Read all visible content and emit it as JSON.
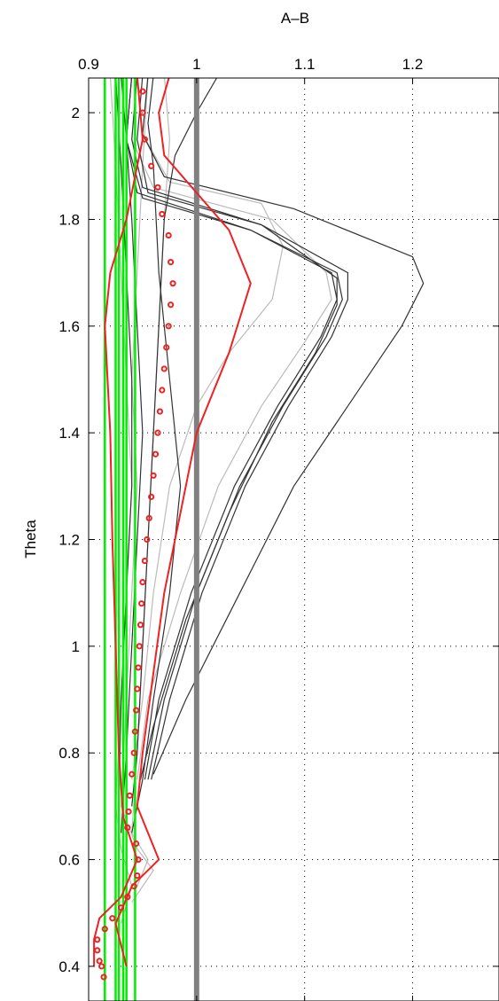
{
  "chart_data": {
    "type": "line",
    "title": "",
    "xlabel": "A–B",
    "ylabel": "Theta",
    "xlim": [
      0.9,
      1.28
    ],
    "ylim": [
      0.335,
      2.065
    ],
    "x_axis_position": "top",
    "grid": true,
    "xticks": [
      0.9,
      1.0,
      1.1,
      1.2
    ],
    "xtick_labels": [
      "0.9",
      "1",
      "1.1",
      "1.2"
    ],
    "yticks": [
      0.4,
      0.6,
      0.8,
      1.0,
      1.2,
      1.4,
      1.6,
      1.8,
      2.0
    ],
    "ytick_labels": [
      "0.4",
      "0.6",
      "0.8",
      "1",
      "1.2",
      "1.4",
      "1.6",
      "1.8",
      "2"
    ],
    "reference_line": {
      "x": 1.0,
      "color": "#808080"
    },
    "colors": {
      "dark_lines": "#333333",
      "light_lines": "#bbbbbb",
      "green_lines": "#00ee00",
      "red": "#ee2222",
      "reference": "#808080"
    },
    "series": [
      {
        "style": "dark",
        "points": [
          [
            0.94,
            2.07
          ],
          [
            0.935,
            1.95
          ],
          [
            0.945,
            1.85
          ],
          [
            1.05,
            1.78
          ],
          [
            1.13,
            1.7
          ],
          [
            1.135,
            1.65
          ],
          [
            1.12,
            1.58
          ],
          [
            1.08,
            1.45
          ],
          [
            1.04,
            1.3
          ],
          [
            1.0,
            1.1
          ],
          [
            0.97,
            0.9
          ],
          [
            0.955,
            0.75
          ]
        ]
      },
      {
        "style": "dark",
        "points": [
          [
            0.945,
            2.07
          ],
          [
            0.94,
            1.95
          ],
          [
            0.95,
            1.86
          ],
          [
            1.06,
            1.79
          ],
          [
            1.14,
            1.7
          ],
          [
            1.14,
            1.65
          ],
          [
            1.125,
            1.58
          ],
          [
            1.085,
            1.45
          ],
          [
            1.045,
            1.3
          ],
          [
            1.005,
            1.1
          ],
          [
            0.975,
            0.9
          ],
          [
            0.958,
            0.75
          ]
        ]
      },
      {
        "style": "dark",
        "points": [
          [
            0.94,
            2.07
          ],
          [
            0.935,
            1.95
          ],
          [
            0.95,
            1.84
          ],
          [
            1.05,
            1.78
          ],
          [
            1.125,
            1.7
          ],
          [
            1.13,
            1.65
          ],
          [
            1.115,
            1.58
          ],
          [
            1.075,
            1.45
          ],
          [
            1.035,
            1.3
          ],
          [
            0.995,
            1.1
          ],
          [
            0.965,
            0.9
          ],
          [
            0.952,
            0.75
          ]
        ]
      },
      {
        "style": "dark",
        "points": [
          [
            0.955,
            2.07
          ],
          [
            0.95,
            1.96
          ],
          [
            0.97,
            1.88
          ],
          [
            1.09,
            1.82
          ],
          [
            1.2,
            1.73
          ],
          [
            1.21,
            1.68
          ],
          [
            1.19,
            1.6
          ],
          [
            1.14,
            1.45
          ],
          [
            1.09,
            1.3
          ],
          [
            1.04,
            1.1
          ],
          [
            0.99,
            0.9
          ],
          [
            0.96,
            0.76
          ]
        ]
      },
      {
        "style": "dark",
        "points": [
          [
            0.95,
            2.07
          ],
          [
            0.945,
            1.95
          ],
          [
            0.955,
            1.85
          ],
          [
            1.06,
            1.79
          ],
          [
            1.13,
            1.69
          ],
          [
            1.13,
            1.64
          ],
          [
            1.11,
            1.55
          ],
          [
            1.07,
            1.42
          ],
          [
            1.03,
            1.25
          ],
          [
            0.99,
            1.05
          ],
          [
            0.96,
            0.85
          ],
          [
            0.948,
            0.75
          ]
        ]
      },
      {
        "style": "light",
        "points": [
          [
            0.945,
            2.07
          ],
          [
            0.94,
            1.95
          ],
          [
            0.96,
            1.86
          ],
          [
            1.07,
            1.8
          ],
          [
            1.12,
            1.7
          ],
          [
            1.125,
            1.65
          ],
          [
            1.1,
            1.57
          ],
          [
            1.06,
            1.45
          ],
          [
            1.02,
            1.3
          ],
          [
            0.985,
            1.1
          ],
          [
            0.955,
            0.9
          ],
          [
            0.945,
            0.75
          ]
        ]
      },
      {
        "style": "light",
        "points": [
          [
            0.955,
            2.07
          ],
          [
            0.95,
            1.96
          ],
          [
            0.975,
            1.87
          ],
          [
            1.06,
            1.83
          ],
          [
            1.08,
            1.75
          ],
          [
            1.07,
            1.65
          ],
          [
            1.03,
            1.55
          ],
          [
            1.0,
            1.45
          ],
          [
            0.975,
            1.3
          ],
          [
            0.96,
            1.1
          ],
          [
            0.95,
            0.9
          ],
          [
            0.94,
            0.75
          ]
        ]
      },
      {
        "style": "dark",
        "points": [
          [
            0.96,
            2.07
          ],
          [
            0.955,
            1.98
          ],
          [
            0.96,
            1.9
          ],
          [
            0.965,
            1.7
          ],
          [
            0.975,
            1.5
          ],
          [
            0.985,
            1.3
          ],
          [
            0.975,
            1.1
          ],
          [
            0.96,
            0.9
          ],
          [
            0.95,
            0.75
          ],
          [
            0.94,
            0.65
          ]
        ]
      },
      {
        "style": "dark",
        "points": [
          [
            0.93,
            2.07
          ],
          [
            0.935,
            1.95
          ],
          [
            0.94,
            1.8
          ],
          [
            0.945,
            1.6
          ],
          [
            0.95,
            1.4
          ],
          [
            0.945,
            1.2
          ],
          [
            0.94,
            1.0
          ],
          [
            0.935,
            0.8
          ],
          [
            0.93,
            0.65
          ]
        ]
      },
      {
        "style": "light",
        "points": [
          [
            0.92,
            2.07
          ],
          [
            0.925,
            1.9
          ],
          [
            0.93,
            1.7
          ],
          [
            0.935,
            1.5
          ],
          [
            0.94,
            1.3
          ],
          [
            0.935,
            1.1
          ],
          [
            0.93,
            0.9
          ],
          [
            0.925,
            0.7
          ],
          [
            0.93,
            0.62
          ],
          [
            0.94,
            0.55
          ],
          [
            0.93,
            0.48
          ]
        ]
      },
      {
        "style": "light",
        "points": [
          [
            0.97,
            2.07
          ],
          [
            0.975,
            1.95
          ],
          [
            0.97,
            1.8
          ],
          [
            0.965,
            1.6
          ],
          [
            0.96,
            1.4
          ],
          [
            0.955,
            1.2
          ],
          [
            0.95,
            1.0
          ],
          [
            0.945,
            0.8
          ],
          [
            0.94,
            0.65
          ],
          [
            0.955,
            0.6
          ],
          [
            0.945,
            0.55
          ]
        ]
      },
      {
        "style": "dark",
        "points": [
          [
            1.02,
            2.07
          ],
          [
            1.0,
            2.0
          ],
          [
            0.98,
            1.92
          ],
          [
            0.97,
            1.8
          ],
          [
            0.965,
            1.6
          ],
          [
            0.96,
            1.4
          ],
          [
            0.955,
            1.2
          ],
          [
            0.95,
            1.0
          ],
          [
            0.945,
            0.8
          ],
          [
            0.94,
            0.7
          ]
        ]
      },
      {
        "style": "light",
        "points": [
          [
            0.955,
            2.07
          ],
          [
            0.95,
            1.9
          ],
          [
            0.945,
            1.7
          ],
          [
            0.94,
            1.5
          ],
          [
            0.945,
            1.3
          ],
          [
            0.94,
            1.1
          ],
          [
            0.935,
            0.9
          ],
          [
            0.93,
            0.7
          ],
          [
            0.945,
            0.62
          ],
          [
            0.96,
            0.58
          ],
          [
            0.94,
            0.52
          ]
        ]
      },
      {
        "style": "dark",
        "points": [
          [
            0.925,
            2.07
          ],
          [
            0.93,
            1.9
          ],
          [
            0.935,
            1.7
          ],
          [
            0.94,
            1.5
          ],
          [
            0.94,
            1.3
          ],
          [
            0.935,
            1.1
          ],
          [
            0.93,
            0.9
          ],
          [
            0.928,
            0.7
          ]
        ]
      }
    ],
    "green_lines": [
      0.915,
      0.925,
      0.928,
      0.932,
      0.935,
      0.943
    ],
    "red_lines": [
      {
        "points": [
          [
            0.975,
            2.07
          ],
          [
            0.965,
            2.0
          ],
          [
            0.97,
            1.92
          ],
          [
            1.0,
            1.85
          ],
          [
            1.03,
            1.78
          ],
          [
            1.05,
            1.68
          ],
          [
            1.03,
            1.55
          ],
          [
            1.0,
            1.4
          ],
          [
            0.985,
            1.25
          ],
          [
            0.97,
            1.1
          ],
          [
            0.96,
            0.95
          ],
          [
            0.95,
            0.8
          ],
          [
            0.945,
            0.7
          ],
          [
            0.965,
            0.6
          ],
          [
            0.94,
            0.55
          ],
          [
            0.925,
            0.48
          ],
          [
            0.935,
            0.4
          ]
        ]
      },
      {
        "points": [
          [
            0.945,
            2.07
          ],
          [
            0.95,
            1.95
          ],
          [
            0.935,
            1.8
          ],
          [
            0.92,
            1.7
          ],
          [
            0.915,
            1.6
          ],
          [
            0.92,
            1.4
          ],
          [
            0.922,
            1.2
          ],
          [
            0.925,
            1.0
          ],
          [
            0.928,
            0.8
          ],
          [
            0.932,
            0.68
          ],
          [
            0.945,
            0.6
          ],
          [
            0.93,
            0.53
          ],
          [
            0.91,
            0.49
          ],
          [
            0.905,
            0.45
          ],
          [
            0.905,
            0.4
          ]
        ]
      }
    ],
    "markers": [
      [
        0.95,
        2.04
      ],
      [
        0.95,
        2.0
      ],
      [
        0.952,
        1.95
      ],
      [
        0.958,
        1.9
      ],
      [
        0.964,
        1.86
      ],
      [
        0.968,
        1.81
      ],
      [
        0.974,
        1.77
      ],
      [
        0.976,
        1.72
      ],
      [
        0.978,
        1.68
      ],
      [
        0.976,
        1.64
      ],
      [
        0.974,
        1.6
      ],
      [
        0.972,
        1.56
      ],
      [
        0.97,
        1.52
      ],
      [
        0.968,
        1.48
      ],
      [
        0.966,
        1.44
      ],
      [
        0.964,
        1.4
      ],
      [
        0.962,
        1.36
      ],
      [
        0.96,
        1.32
      ],
      [
        0.958,
        1.28
      ],
      [
        0.956,
        1.24
      ],
      [
        0.954,
        1.2
      ],
      [
        0.952,
        1.16
      ],
      [
        0.95,
        1.12
      ],
      [
        0.949,
        1.08
      ],
      [
        0.948,
        1.04
      ],
      [
        0.947,
        1.0
      ],
      [
        0.946,
        0.96
      ],
      [
        0.945,
        0.92
      ],
      [
        0.944,
        0.88
      ],
      [
        0.943,
        0.84
      ],
      [
        0.942,
        0.8
      ],
      [
        0.94,
        0.76
      ],
      [
        0.938,
        0.72
      ],
      [
        0.937,
        0.69
      ],
      [
        0.936,
        0.66
      ],
      [
        0.944,
        0.63
      ],
      [
        0.946,
        0.6
      ],
      [
        0.945,
        0.57
      ],
      [
        0.942,
        0.55
      ],
      [
        0.936,
        0.53
      ],
      [
        0.93,
        0.51
      ],
      [
        0.922,
        0.49
      ],
      [
        0.915,
        0.47
      ],
      [
        0.908,
        0.45
      ],
      [
        0.908,
        0.43
      ],
      [
        0.91,
        0.41
      ],
      [
        0.912,
        0.4
      ],
      [
        0.914,
        0.38
      ]
    ]
  }
}
